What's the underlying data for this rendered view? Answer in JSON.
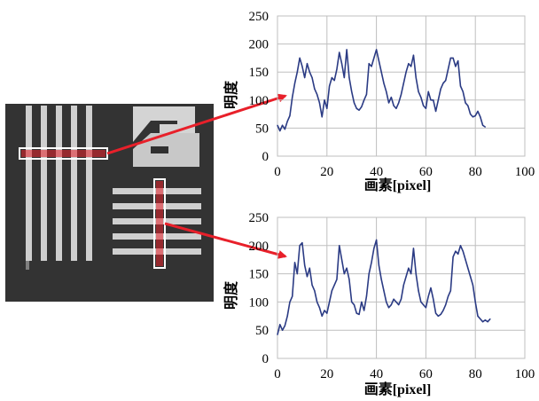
{
  "colors": {
    "line": "#2b3b84",
    "grid": "#bfbfbf",
    "highlight": "#e8202a",
    "background": "#ffffff"
  },
  "chart_data": [
    {
      "type": "line",
      "xlabel": "画素[pixel]",
      "ylabel": "明度",
      "xlim": [
        0,
        100
      ],
      "ylim": [
        0,
        250
      ],
      "xticks": [
        "0",
        "20",
        "40",
        "60",
        "80",
        "100"
      ],
      "yticks": [
        "0",
        "50",
        "100",
        "150",
        "200",
        "250"
      ],
      "grid": true,
      "series": [
        {
          "values": [
            55,
            45,
            55,
            48,
            62,
            72,
            105,
            130,
            150,
            175,
            160,
            140,
            165,
            150,
            140,
            120,
            110,
            95,
            70,
            100,
            85,
            125,
            140,
            135,
            155,
            185,
            165,
            140,
            190,
            140,
            115,
            95,
            85,
            82,
            88,
            100,
            110,
            165,
            160,
            175,
            190,
            170,
            150,
            130,
            115,
            95,
            105,
            90,
            85,
            95,
            110,
            130,
            150,
            165,
            160,
            180,
            140,
            115,
            105,
            90,
            85,
            115,
            100,
            100,
            80,
            100,
            120,
            130,
            135,
            155,
            175,
            175,
            160,
            170,
            125,
            115,
            95,
            90,
            75,
            70,
            72,
            80,
            70,
            55,
            52
          ]
        }
      ]
    },
    {
      "type": "line",
      "xlabel": "画素[pixel]",
      "ylabel": "明度",
      "xlim": [
        0,
        100
      ],
      "ylim": [
        0,
        250
      ],
      "xticks": [
        "0",
        "20",
        "40",
        "60",
        "80",
        "100"
      ],
      "yticks": [
        "0",
        "50",
        "100",
        "150",
        "200",
        "250"
      ],
      "grid": true,
      "series": [
        {
          "values": [
            42,
            60,
            50,
            58,
            75,
            100,
            110,
            170,
            150,
            200,
            205,
            165,
            145,
            160,
            130,
            120,
            100,
            90,
            75,
            85,
            80,
            100,
            120,
            130,
            140,
            200,
            175,
            150,
            160,
            140,
            100,
            95,
            80,
            78,
            100,
            85,
            110,
            150,
            170,
            195,
            210,
            165,
            140,
            120,
            100,
            90,
            95,
            105,
            100,
            95,
            105,
            130,
            145,
            160,
            150,
            195,
            150,
            120,
            100,
            95,
            90,
            110,
            125,
            105,
            80,
            75,
            78,
            85,
            95,
            110,
            120,
            180,
            190,
            185,
            200,
            190,
            175,
            160,
            145,
            130,
            100,
            75,
            70,
            65,
            68,
            65,
            70
          ]
        }
      ]
    }
  ],
  "inset_image": {
    "vertical_bars": 5,
    "horizontal_bars": 5,
    "colors": {
      "dark": "#2c2c2c",
      "light": "#d8d8d8",
      "bar_highlight": "#e8202a"
    }
  }
}
